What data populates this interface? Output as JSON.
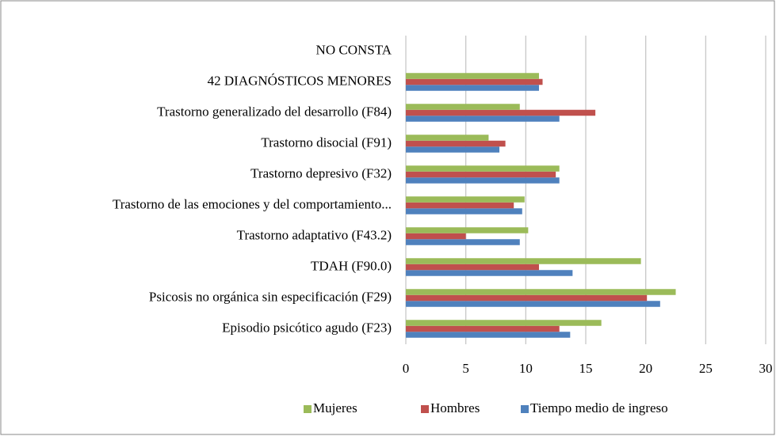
{
  "chart_data": {
    "type": "barh",
    "categories": [
      "Episodio psicótico agudo (F23)",
      "Psicosis no orgánica sin especificación (F29)",
      "TDAH (F90.0)",
      "Trastorno adaptativo (F43.2)",
      "Trastorno de las emociones y del comportamiento...",
      "Trastorno depresivo (F32)",
      "Trastorno disocial (F91)",
      "Trastorno generalizado del desarrollo (F84)",
      "42 DIAGNÓSTICOS MENORES",
      "NO  CONSTA"
    ],
    "series": [
      {
        "name": "Tiempo medio de ingreso",
        "color": "#4f81bd",
        "values": [
          13.7,
          21.2,
          13.9,
          9.5,
          9.7,
          12.8,
          7.8,
          12.8,
          11.1,
          null
        ]
      },
      {
        "name": "Hombres",
        "color": "#c0504d",
        "values": [
          12.8,
          20.1,
          11.1,
          5.0,
          9.0,
          12.5,
          8.3,
          15.8,
          11.4,
          null
        ]
      },
      {
        "name": "Mujeres",
        "color": "#9bbb59",
        "values": [
          16.3,
          22.5,
          19.6,
          10.2,
          9.9,
          12.8,
          6.9,
          9.5,
          11.1,
          null
        ]
      }
    ],
    "xlim": [
      0,
      30
    ],
    "xticks": [
      0,
      5,
      10,
      15,
      20,
      25,
      30
    ],
    "grid": true,
    "legend": "bottom"
  }
}
